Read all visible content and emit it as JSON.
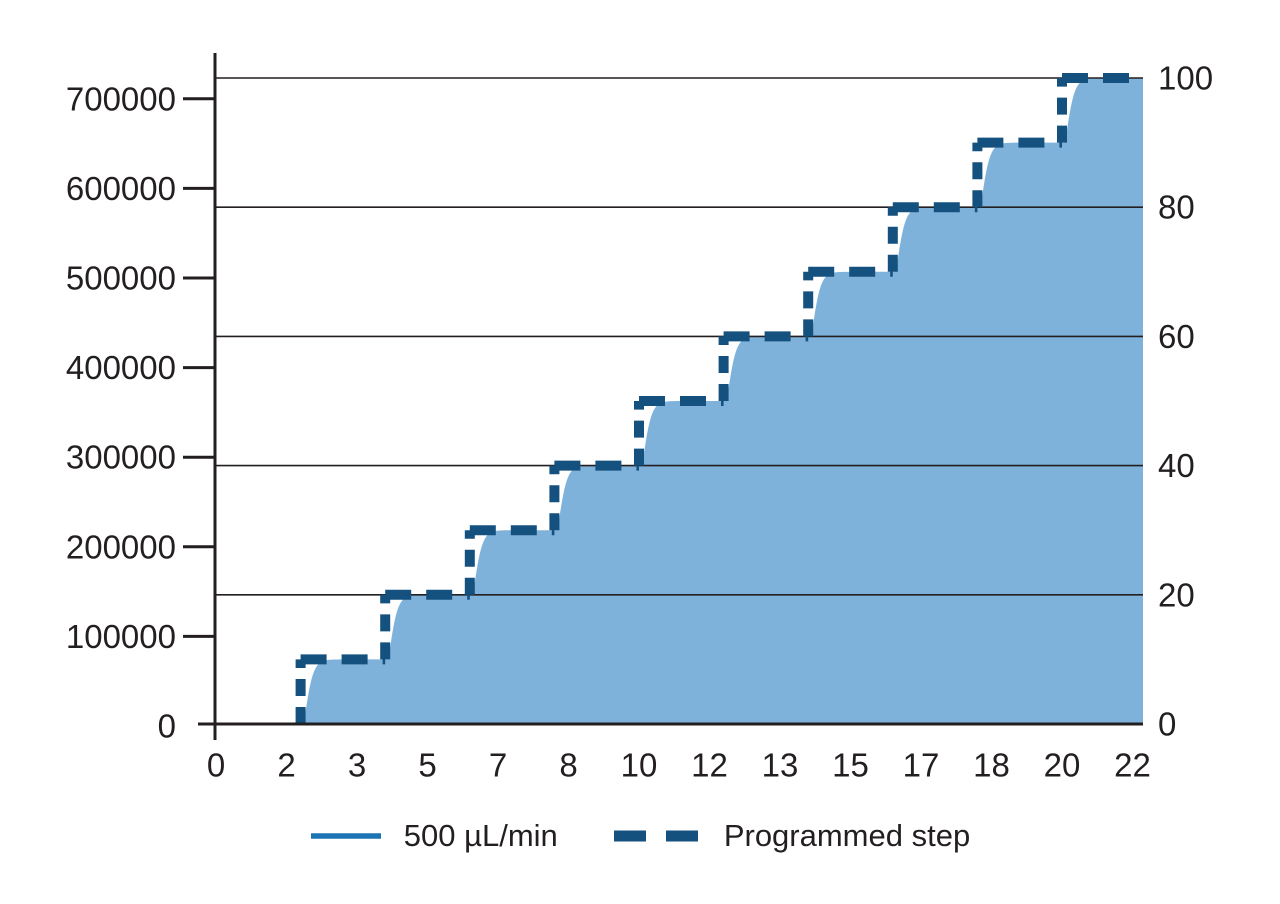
{
  "page": {
    "background": "#ffffff"
  },
  "legend": {
    "items": [
      {
        "label": "500 µL/min",
        "swatch": "solid-line",
        "color": "#1B74B4"
      },
      {
        "label": "Programmed step",
        "swatch": "dashed-line",
        "color": "#14517E"
      }
    ]
  },
  "chart_data": {
    "type": "area",
    "title": "",
    "subtitle": "",
    "x_axis": {
      "label": "",
      "unit": "min",
      "tick_labels": [
        "0",
        "2",
        "3",
        "5",
        "7",
        "8",
        "10",
        "12",
        "13",
        "15",
        "17",
        "18",
        "20",
        "22"
      ],
      "tick_values_min": [
        0,
        1.6667,
        3.3333,
        5,
        6.6667,
        8.3333,
        10,
        11.6667,
        13.3333,
        15,
        16.6667,
        18.3333,
        20,
        21.6667
      ],
      "range_min": [
        0,
        21.92
      ],
      "gridlines": false
    },
    "y_axis_left": {
      "label": "",
      "tick_labels": [
        "0",
        "100000",
        "200000",
        "300000",
        "400000",
        "500000",
        "600000",
        "700000"
      ],
      "tick_values": [
        0,
        100000,
        200000,
        300000,
        400000,
        500000,
        600000,
        700000
      ],
      "range": [
        0,
        750000
      ]
    },
    "y_axis_right": {
      "label": "",
      "unit": "%",
      "tick_labels": [
        "0",
        "20",
        "40",
        "60",
        "80",
        "100"
      ],
      "tick_values": [
        0,
        20,
        40,
        60,
        80,
        100
      ],
      "gridline_values": [
        20,
        40,
        60,
        80,
        100
      ],
      "range": [
        0,
        104
      ]
    },
    "series": [
      {
        "name": "500 µL/min",
        "type": "area",
        "role": "measured gradient response (delayed/smoothed step)",
        "fill_color": "#7FB2DB",
        "line_color": "#1B74B4",
        "delay_min": 0.05,
        "tau_min": 0.09
      },
      {
        "name": "Programmed step",
        "type": "step",
        "dashed": true,
        "color": "#14517E",
        "start_percent": 0,
        "hold_until_min": 21.92,
        "steps_percent": [
          {
            "t_min": 2,
            "percent": 10
          },
          {
            "t_min": 4,
            "percent": 20
          },
          {
            "t_min": 6,
            "percent": 30
          },
          {
            "t_min": 8,
            "percent": 40
          },
          {
            "t_min": 10,
            "percent": 50
          },
          {
            "t_min": 12,
            "percent": 60
          },
          {
            "t_min": 14,
            "percent": 70
          },
          {
            "t_min": 16,
            "percent": 80
          },
          {
            "t_min": 18,
            "percent": 90
          },
          {
            "t_min": 20,
            "percent": 100
          }
        ]
      }
    ],
    "colors": {
      "axis": "#231F20",
      "grid": "#231F20",
      "text": "#231F20",
      "background": "#FFFFFF"
    },
    "legend_position": "bottom-center"
  }
}
